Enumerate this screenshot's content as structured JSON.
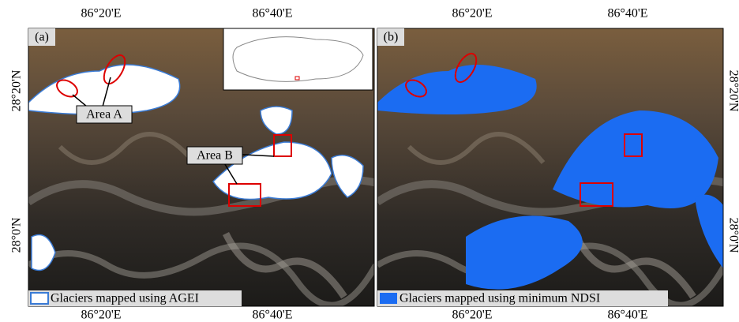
{
  "panels": [
    {
      "label": "(a)",
      "legend": "Glaciers mapped using AGEI",
      "top_ticks": [
        "86°20'E",
        "86°40'E"
      ],
      "bottom_ticks": [
        "86°20'E",
        "86°40'E"
      ],
      "side_ticks": [
        "28°20'N",
        "28°0'N"
      ],
      "annotations": [
        "Area A",
        "Area B"
      ]
    },
    {
      "label": "(b)",
      "legend": "Glaciers mapped using minimum NDSI",
      "top_ticks": [
        "86°20'E",
        "86°40'E"
      ],
      "bottom_ticks": [
        "86°20'E",
        "86°40'E"
      ],
      "side_ticks": [
        "28°20'N",
        "28°0'N"
      ]
    }
  ]
}
